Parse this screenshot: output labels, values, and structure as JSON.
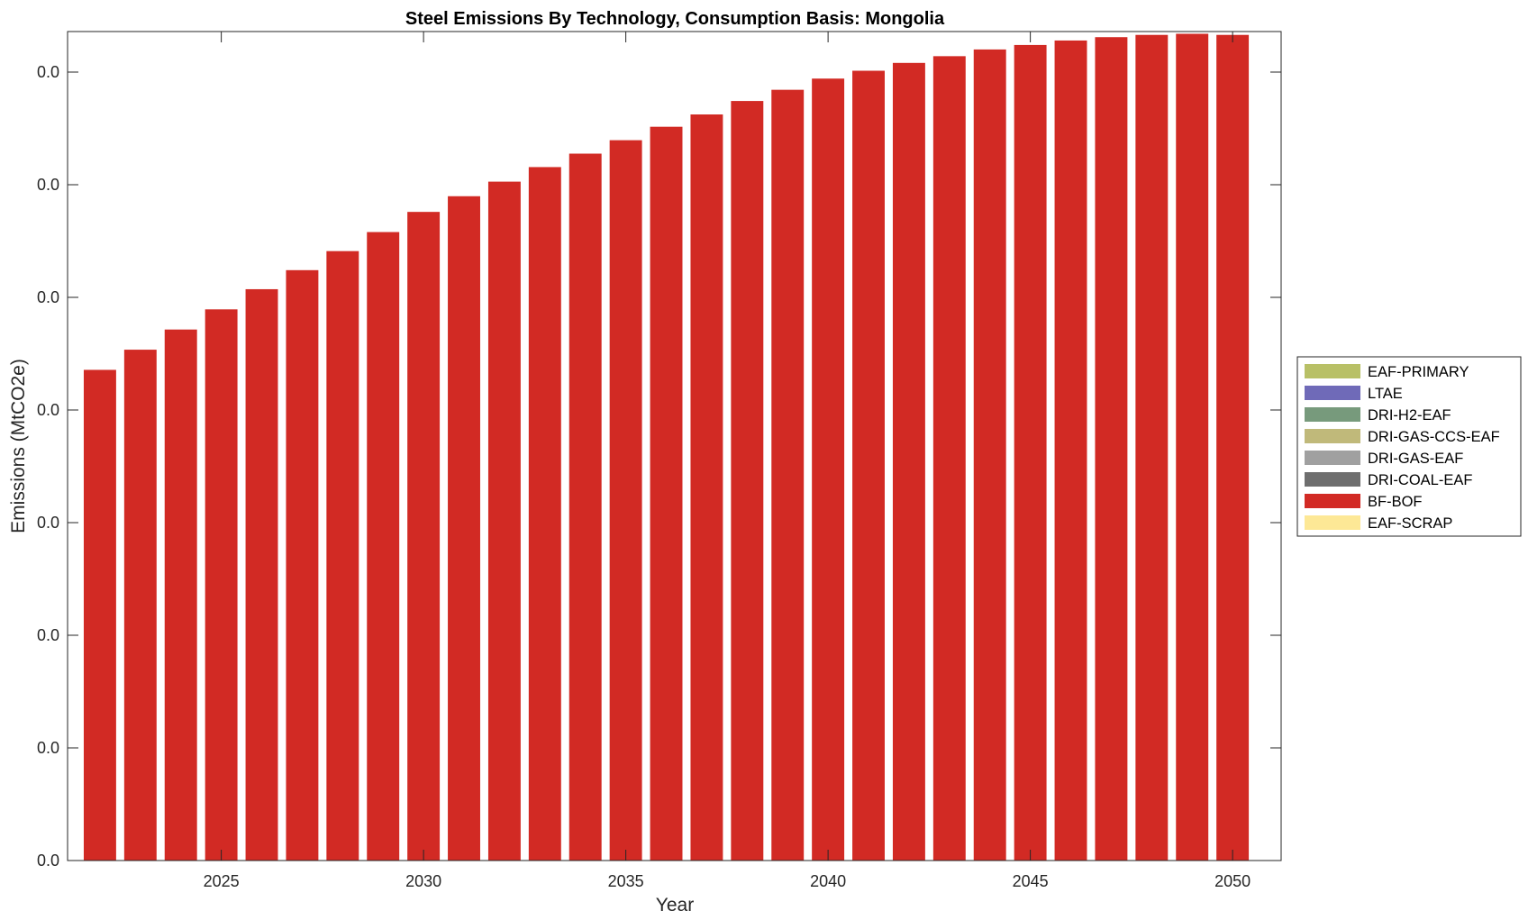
{
  "chart_data": {
    "type": "bar",
    "stacked": true,
    "title": "Steel Emissions By Technology, Consumption Basis: Mongolia",
    "xlabel": "Year",
    "ylabel": "Emissions (MtCO2e)",
    "categories": [
      2022,
      2023,
      2024,
      2025,
      2026,
      2027,
      2028,
      2029,
      2030,
      2031,
      2032,
      2033,
      2034,
      2035,
      2036,
      2037,
      2038,
      2039,
      2040,
      2041,
      2042,
      2043,
      2044,
      2045,
      2046,
      2047,
      2048,
      2049,
      2050
    ],
    "x_ticks": [
      2025,
      2030,
      2035,
      2040,
      2045,
      2050
    ],
    "y_tick_labels": [
      "0.0",
      "0.0",
      "0.0",
      "0.0",
      "0.0",
      "0.0",
      "0.0",
      "0.0"
    ],
    "ylim": [
      0,
      0.0074
    ],
    "xlim": [
      2021.2,
      2051.2
    ],
    "grid": false,
    "legend_position": "right",
    "series": [
      {
        "name": "EAF-PRIMARY",
        "color": "#b8c066",
        "values": [
          0,
          0,
          0,
          0,
          0,
          0,
          0,
          0,
          0,
          0,
          0,
          0,
          0,
          0,
          0,
          0,
          0,
          0,
          0,
          0,
          0,
          0,
          0,
          0,
          0,
          0,
          0,
          0,
          0
        ]
      },
      {
        "name": "LTAE",
        "color": "#6f6ab8",
        "values": [
          0,
          0,
          0,
          0,
          0,
          0,
          0,
          0,
          0,
          0,
          0,
          0,
          0,
          0,
          0,
          0,
          0,
          0,
          0,
          0,
          0,
          0,
          0,
          0,
          0,
          0,
          0,
          0,
          0
        ]
      },
      {
        "name": "DRI-H2-EAF",
        "color": "#779a7c",
        "values": [
          0,
          0,
          0,
          0,
          0,
          0,
          0,
          0,
          0,
          0,
          0,
          0,
          0,
          0,
          0,
          0,
          0,
          0,
          0,
          0,
          0,
          0,
          0,
          0,
          0,
          0,
          0,
          0,
          0
        ]
      },
      {
        "name": "DRI-GAS-CCS-EAF",
        "color": "#c0b97a",
        "values": [
          0,
          0,
          0,
          0,
          0,
          0,
          0,
          0,
          0,
          0,
          0,
          0,
          0,
          0,
          0,
          0,
          0,
          0,
          0,
          0,
          0,
          0,
          0,
          0,
          0,
          0,
          0,
          0,
          0
        ]
      },
      {
        "name": "DRI-GAS-EAF",
        "color": "#a0a0a0",
        "values": [
          0,
          0,
          0,
          0,
          0,
          0,
          0,
          0,
          0,
          0,
          0,
          0,
          0,
          0,
          0,
          0,
          0,
          0,
          0,
          0,
          0,
          0,
          0,
          0,
          0,
          0,
          0,
          0,
          0
        ]
      },
      {
        "name": "DRI-COAL-EAF",
        "color": "#6e6e6e",
        "values": [
          0,
          0,
          0,
          0,
          0,
          0,
          0,
          0,
          0,
          0,
          0,
          0,
          0,
          0,
          0,
          0,
          0,
          0,
          0,
          0,
          0,
          0,
          0,
          0,
          0,
          0,
          0,
          0,
          0
        ]
      },
      {
        "name": "BF-BOF",
        "color": "#d22a24",
        "values": [
          0.00438,
          0.00456,
          0.00474,
          0.00492,
          0.0051,
          0.00527,
          0.00544,
          0.00561,
          0.00579,
          0.00593,
          0.00606,
          0.00619,
          0.00631,
          0.00643,
          0.00655,
          0.00666,
          0.00678,
          0.00688,
          0.00698,
          0.00705,
          0.00712,
          0.00718,
          0.00724,
          0.00728,
          0.00732,
          0.00735,
          0.00737,
          0.00738,
          0.00737
        ]
      },
      {
        "name": "EAF-SCRAP",
        "color": "#fde896",
        "values": [
          0,
          0,
          0,
          0,
          0,
          0,
          0,
          0,
          0,
          0,
          0,
          0,
          0,
          0,
          0,
          0,
          0,
          0,
          0,
          0,
          0,
          0,
          0,
          0,
          0,
          0,
          0,
          0,
          0
        ]
      }
    ]
  }
}
